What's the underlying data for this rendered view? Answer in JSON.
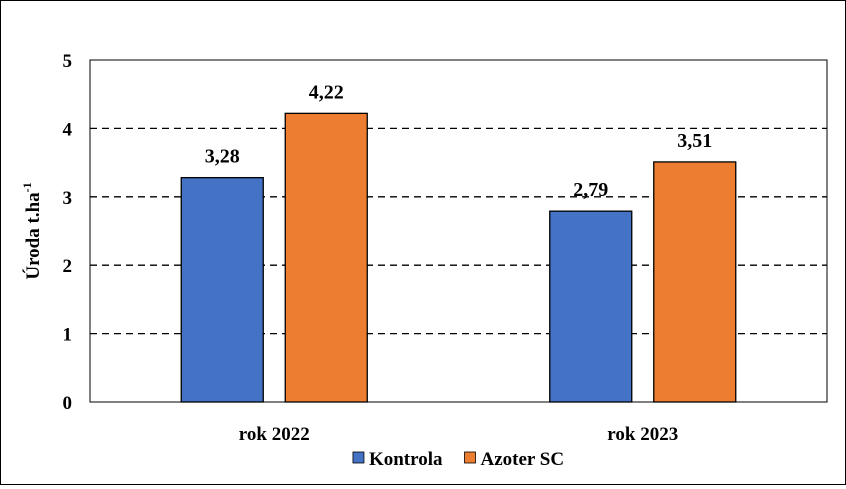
{
  "chart_data": {
    "type": "bar",
    "categories": [
      "rok 2022",
      "rok 2023"
    ],
    "series": [
      {
        "name": "Kontrola",
        "values": [
          3.28,
          2.79
        ],
        "labels": [
          "3,28",
          "2,79"
        ],
        "color": "#4472C4"
      },
      {
        "name": "Azoter SC",
        "values": [
          4.22,
          3.51
        ],
        "labels": [
          "4,22",
          "3,51"
        ],
        "color": "#ED7D31"
      }
    ],
    "ylabel": "Úroda t.ha",
    "ylabel_superscript": "-1",
    "xlabel": "",
    "ylim": [
      0,
      5
    ],
    "yticks": [
      0,
      1,
      2,
      3,
      4,
      5
    ],
    "grid": "horizontal dashed",
    "legend": "bottom-center"
  }
}
